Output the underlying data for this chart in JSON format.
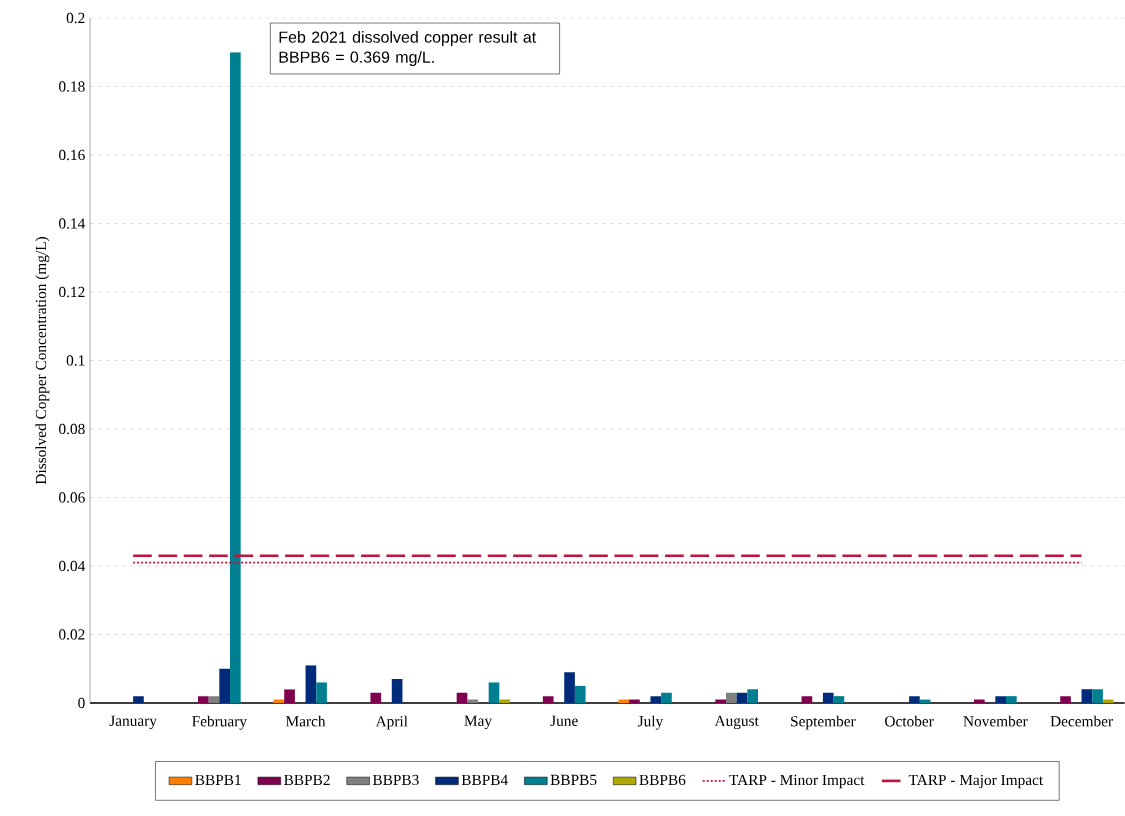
{
  "chart_data": {
    "type": "bar",
    "ylabel": "Dissolved Copper Concentration (mg/L)",
    "categories": [
      "January",
      "February",
      "March",
      "April",
      "May",
      "June",
      "July",
      "August",
      "September",
      "October",
      "November",
      "December"
    ],
    "series": [
      {
        "name": "BBPB1",
        "color": "#ff8000",
        "values": [
          null,
          null,
          0.001,
          null,
          null,
          null,
          0.001,
          null,
          null,
          null,
          null,
          null
        ]
      },
      {
        "name": "BBPB2",
        "color": "#800050",
        "values": [
          null,
          0.002,
          0.004,
          0.003,
          0.003,
          0.002,
          0.001,
          0.001,
          0.002,
          null,
          0.001,
          0.002
        ]
      },
      {
        "name": "BBPB3",
        "color": "#808080",
        "values": [
          null,
          0.002,
          null,
          null,
          0.001,
          null,
          null,
          0.003,
          null,
          null,
          null,
          null
        ]
      },
      {
        "name": "BBPB4",
        "color": "#002b7a",
        "values": [
          0.002,
          0.01,
          0.011,
          0.007,
          null,
          0.009,
          0.002,
          0.003,
          0.003,
          0.002,
          0.002,
          0.004
        ]
      },
      {
        "name": "BBPB5",
        "color": "#007f91",
        "values": [
          null,
          0.19,
          0.006,
          null,
          0.006,
          0.005,
          0.003,
          0.004,
          0.002,
          0.001,
          0.002,
          0.004
        ]
      },
      {
        "name": "BBPB6",
        "color": "#b0a800",
        "values": [
          null,
          null,
          null,
          null,
          0.001,
          null,
          null,
          null,
          null,
          null,
          null,
          0.001
        ]
      }
    ],
    "ref_lines": [
      {
        "axis": "y",
        "value": 0.041,
        "label": "TARP - Minor Impact",
        "color": "#c0143c",
        "line_style": "dotted"
      },
      {
        "axis": "y",
        "value": 0.043,
        "label": "TARP - Major Impact",
        "color": "#c0143c",
        "line_style": "dashed"
      }
    ],
    "annotations": [
      "Feb 2021 dissolved copper result at BBPB6 = 0.369 mg/L."
    ],
    "ylim": [
      0,
      0.2
    ],
    "yticks": [
      0,
      0.02,
      0.04,
      0.06,
      0.08,
      0.1,
      0.12,
      0.14,
      0.16,
      0.18,
      0.2
    ],
    "grid": "y",
    "legend": "bottom"
  }
}
